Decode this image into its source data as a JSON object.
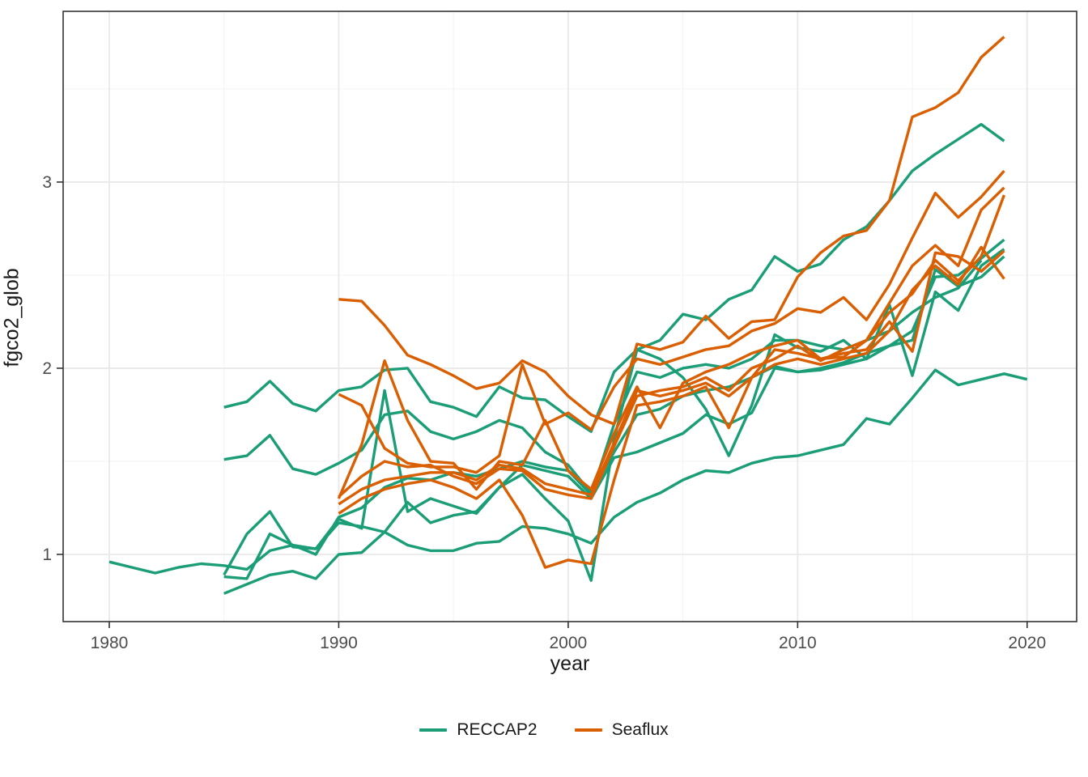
{
  "chart_data": {
    "type": "line",
    "title": "",
    "xlabel": "year",
    "ylabel": "fgco2_glob",
    "xlim": [
      1977.99,
      2022.16
    ],
    "ylim": [
      0.639,
      3.917
    ],
    "x_ticks_major": [
      1980,
      1990,
      2000,
      2010,
      2020
    ],
    "x_ticks_minor": [
      1985,
      1995,
      2005,
      2015
    ],
    "y_ticks_major": [
      1,
      2,
      3
    ],
    "y_ticks_minor": [
      1.5,
      2.5,
      3.5
    ],
    "grid": true,
    "legend_position": "bottom",
    "colors": {
      "RECCAP2": "#1B9E77",
      "Seaflux": "#D95F02"
    },
    "legend": [
      {
        "label": "RECCAP2",
        "color": "#1B9E77"
      },
      {
        "label": "Seaflux",
        "color": "#D95F02"
      }
    ],
    "series": [
      {
        "name": "reccap2_1",
        "group": "RECCAP2",
        "start_year": 1980,
        "values": [
          0.96,
          0.93,
          0.9,
          0.93,
          0.95,
          0.94,
          0.92,
          1.02,
          1.05,
          1.03,
          1.17,
          1.15,
          1.12,
          1.05,
          1.02,
          1.02,
          1.06,
          1.07,
          1.15,
          1.14,
          1.11,
          1.06,
          1.2,
          1.28,
          1.33,
          1.4,
          1.45,
          1.44,
          1.49,
          1.52,
          1.53,
          1.56,
          1.59,
          1.73,
          1.7,
          1.84,
          1.99,
          1.91,
          1.94,
          1.97,
          1.94
        ]
      },
      {
        "name": "reccap2_2",
        "group": "RECCAP2",
        "start_year": 1985,
        "values": [
          0.89,
          1.11,
          1.23,
          1.04,
          1.03,
          1.19,
          1.14,
          1.88,
          1.23,
          1.3,
          1.26,
          1.22,
          1.36,
          1.43,
          1.3,
          1.18,
          0.86,
          1.62,
          2.1,
          2.05,
          1.95,
          1.78,
          1.53,
          1.8,
          2.18,
          2.11,
          2.09,
          2.15,
          2.05,
          2.34,
          1.96,
          2.41,
          2.31,
          2.55,
          2.64
        ]
      },
      {
        "name": "reccap2_3",
        "group": "RECCAP2",
        "start_year": 1985,
        "values": [
          0.79,
          0.84,
          0.89,
          0.91,
          0.87,
          1.0,
          1.01,
          1.12,
          1.28,
          1.17,
          1.21,
          1.23,
          1.36,
          1.48,
          1.45,
          1.42,
          1.3,
          1.52,
          1.55,
          1.6,
          1.65,
          1.75,
          1.7,
          1.76,
          2.0,
          1.98,
          1.99,
          2.02,
          2.05,
          2.12,
          2.15,
          2.53,
          2.44,
          2.49,
          2.6
        ]
      },
      {
        "name": "reccap2_4",
        "group": "RECCAP2",
        "start_year": 1985,
        "values": [
          1.51,
          1.53,
          1.64,
          1.46,
          1.43,
          1.49,
          1.56,
          1.75,
          1.77,
          1.66,
          1.62,
          1.66,
          1.72,
          1.68,
          1.55,
          1.48,
          1.33,
          1.55,
          1.75,
          1.78,
          1.85,
          1.88,
          1.9,
          1.95,
          2.01,
          1.98,
          2.0,
          2.03,
          2.08,
          2.12,
          2.2,
          2.49,
          2.5,
          2.59,
          2.69
        ]
      },
      {
        "name": "reccap2_5",
        "group": "RECCAP2",
        "start_year": 1985,
        "values": [
          0.88,
          0.87,
          1.11,
          1.05,
          1.0,
          1.2,
          1.25,
          1.36,
          1.41,
          1.4,
          1.44,
          1.42,
          1.46,
          1.5,
          1.47,
          1.45,
          1.32,
          1.7,
          1.98,
          1.95,
          2.0,
          2.02,
          2.0,
          2.05,
          2.15,
          2.15,
          2.12,
          2.1,
          2.15,
          2.2,
          2.3,
          2.38,
          2.43,
          2.58
        ]
      },
      {
        "name": "reccap2_6",
        "group": "RECCAP2",
        "start_year": 1985,
        "values": [
          1.79,
          1.82,
          1.93,
          1.81,
          1.77,
          1.88,
          1.9,
          1.99,
          2.0,
          1.82,
          1.79,
          1.74,
          1.9,
          1.84,
          1.83,
          1.74,
          1.66,
          1.98,
          2.1,
          2.15,
          2.29,
          2.26,
          2.37,
          2.42,
          2.6,
          2.52,
          2.56,
          2.69,
          2.76,
          2.9,
          3.06,
          3.15,
          3.23,
          3.31,
          3.22
        ]
      },
      {
        "name": "seaflux_1",
        "group": "Seaflux",
        "start_year": 1990,
        "values": [
          2.37,
          2.36,
          2.23,
          2.07,
          2.02,
          1.96,
          1.89,
          1.92,
          2.04,
          1.98,
          1.85,
          1.75,
          1.7,
          2.13,
          2.1,
          2.14,
          2.28,
          2.16,
          2.25,
          2.26,
          2.49,
          2.62,
          2.71,
          2.74,
          2.9,
          3.35,
          3.4,
          3.48,
          3.67,
          3.78
        ]
      },
      {
        "name": "seaflux_2",
        "group": "Seaflux",
        "start_year": 1990,
        "values": [
          1.86,
          1.8,
          1.57,
          1.49,
          1.47,
          1.47,
          1.44,
          1.53,
          2.02,
          1.7,
          1.76,
          1.67,
          1.9,
          2.05,
          2.02,
          2.06,
          2.1,
          2.12,
          2.2,
          2.24,
          2.32,
          2.3,
          2.38,
          2.26,
          2.45,
          2.7,
          2.94,
          2.81,
          2.92,
          3.06
        ]
      },
      {
        "name": "seaflux_3",
        "group": "Seaflux",
        "start_year": 1990,
        "values": [
          1.3,
          1.59,
          2.04,
          1.72,
          1.5,
          1.49,
          1.35,
          1.5,
          1.48,
          1.72,
          1.45,
          1.35,
          1.65,
          1.9,
          1.68,
          1.92,
          1.98,
          2.02,
          2.08,
          2.12,
          2.15,
          2.05,
          2.06,
          2.15,
          2.35,
          2.55,
          2.66,
          2.55,
          2.85,
          2.97
        ]
      },
      {
        "name": "seaflux_4",
        "group": "Seaflux",
        "start_year": 1990,
        "values": [
          1.31,
          1.42,
          1.5,
          1.47,
          1.48,
          1.42,
          1.38,
          1.46,
          1.45,
          1.35,
          1.32,
          1.3,
          1.58,
          1.85,
          1.88,
          1.9,
          1.95,
          1.88,
          2.0,
          2.05,
          2.12,
          2.04,
          2.1,
          2.15,
          2.3,
          2.4,
          2.58,
          2.47,
          2.6,
          2.93
        ]
      },
      {
        "name": "seaflux_5",
        "group": "Seaflux",
        "start_year": 1990,
        "values": [
          1.27,
          1.35,
          1.4,
          1.42,
          1.44,
          1.44,
          1.4,
          1.48,
          1.46,
          1.38,
          1.35,
          1.32,
          1.6,
          1.88,
          1.85,
          1.88,
          1.92,
          1.85,
          1.95,
          2.1,
          2.08,
          2.05,
          2.08,
          2.1,
          2.25,
          2.09,
          2.62,
          2.6,
          2.52,
          2.63
        ]
      },
      {
        "name": "seaflux_6",
        "group": "Seaflux",
        "start_year": 1990,
        "values": [
          1.22,
          1.3,
          1.35,
          1.38,
          1.4,
          1.36,
          1.3,
          1.4,
          1.21,
          0.93,
          0.97,
          0.95,
          1.4,
          1.8,
          1.82,
          1.85,
          1.9,
          1.68,
          1.95,
          2.02,
          2.05,
          2.02,
          2.05,
          2.08,
          2.2,
          2.42,
          2.55,
          2.45,
          2.65,
          2.48
        ]
      }
    ],
    "style": {
      "panel_border": "#333333",
      "grid_major": "#e9e9e9",
      "grid_minor": "#f3f3f3",
      "tick_label_color": "#4d4d4d",
      "line_width": 3.4
    }
  }
}
